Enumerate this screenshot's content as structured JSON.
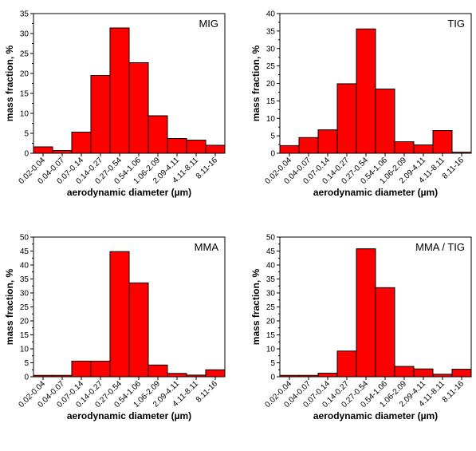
{
  "colors": {
    "bar_fill": "#ff0000",
    "bar_stroke": "#000000",
    "axis": "#000000",
    "background": "#ffffff"
  },
  "chart_data": [
    {
      "type": "bar",
      "title": "MIG",
      "xlabel": "aerodynamic diameter (µm)",
      "ylabel": "mass fraction, %",
      "ylim": [
        0,
        35
      ],
      "yticks": [
        0,
        5,
        10,
        15,
        20,
        25,
        30,
        35
      ],
      "categories": [
        "0.02-0.04",
        "0.04-0.07",
        "0.07-0.14",
        "0.14-0.27",
        "0.27-0.54",
        "0.54-1.06",
        "1.06-2.09",
        "2.09-4.11",
        "4.11-8.11",
        "8.11-16"
      ],
      "values": [
        1.6,
        0.7,
        5.3,
        19.5,
        31.4,
        22.7,
        9.4,
        3.7,
        3.3,
        2.0
      ],
      "legend_position": "top-right",
      "grid": false
    },
    {
      "type": "bar",
      "title": "TIG",
      "xlabel": "aerodynamic diameter (µm)",
      "ylabel": "mass fraction, %",
      "ylim": [
        0,
        40
      ],
      "yticks": [
        0,
        5,
        10,
        15,
        20,
        25,
        30,
        35,
        40
      ],
      "categories": [
        "0.02-0.04",
        "0.04-0.07",
        "0.07-0.14",
        "0.14-0.27",
        "0.27-0.54",
        "0.54-1.06",
        "1.06-2.09",
        "2.09-4.11",
        "4.11-8.11",
        "8.11-16"
      ],
      "values": [
        2.2,
        4.5,
        6.7,
        19.9,
        35.6,
        18.4,
        3.3,
        2.4,
        6.5,
        0.3
      ],
      "legend_position": "top-right",
      "grid": false
    },
    {
      "type": "bar",
      "title": "MMA",
      "xlabel": "aerodynamic diameter (µm)",
      "ylabel": "mass fraction, %",
      "ylim": [
        0,
        50
      ],
      "yticks": [
        0,
        5,
        10,
        15,
        20,
        25,
        30,
        35,
        40,
        45,
        50
      ],
      "categories": [
        "0.02-0.04",
        "0.04-0.07",
        "0.07-0.14",
        "0.14-0.27",
        "0.27-0.54",
        "0.54-1.06",
        "1.06-2.09",
        "2.09-4.11",
        "4.11-8.11",
        "8.11-16"
      ],
      "values": [
        0.5,
        0.5,
        5.6,
        5.6,
        44.8,
        33.6,
        4.2,
        1.2,
        0.6,
        2.5
      ],
      "legend_position": "top-right",
      "grid": false
    },
    {
      "type": "bar",
      "title": "MMA / TIG",
      "xlabel": "aerodynamic diameter (µm)",
      "ylabel": "mass fraction, %",
      "ylim": [
        0,
        50
      ],
      "yticks": [
        0,
        5,
        10,
        15,
        20,
        25,
        30,
        35,
        40,
        45,
        50
      ],
      "categories": [
        "0.02-0.04",
        "0.04-0.07",
        "0.07-0.14",
        "0.14-0.27",
        "0.27-0.54",
        "0.54-1.06",
        "1.06-2.09",
        "2.09-4.11",
        "4.11-8.11",
        "8.11-16"
      ],
      "values": [
        0.5,
        0.5,
        1.3,
        9.2,
        45.8,
        31.9,
        3.7,
        2.8,
        0.9,
        2.7
      ],
      "legend_position": "top-right",
      "grid": false
    }
  ]
}
